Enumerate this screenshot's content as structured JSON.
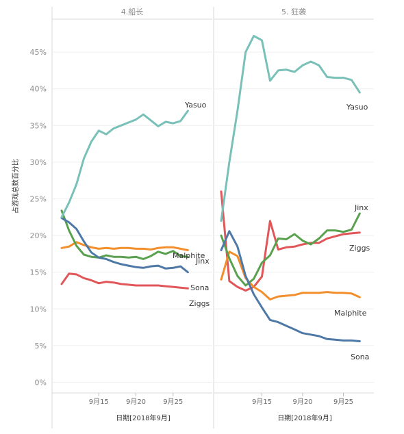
{
  "chart_data": {
    "type": "line",
    "ylabel": "占游戏总数百分比",
    "xlabel": "日期[2018年9月]",
    "y_ticks": [
      "0%",
      "5%",
      "10%",
      "15%",
      "20%",
      "25%",
      "30%",
      "35%",
      "40%",
      "45%"
    ],
    "ylim": [
      0,
      48
    ],
    "x_ticks": [
      {
        "day": 15,
        "label": "9月15"
      },
      {
        "day": 20,
        "label": "9月20"
      },
      {
        "day": 25,
        "label": "9月25"
      }
    ],
    "grid": true,
    "colors": {
      "Yasuo": "#79c1b8",
      "Jinx": "#59a14f",
      "Ziggs": "#e15759",
      "Malphite": "#f28e2b",
      "Sona": "#4e79a7"
    },
    "panels": [
      {
        "title": "4.船长",
        "x": [
          10,
          11,
          12,
          13,
          14,
          15,
          16,
          17,
          18,
          19,
          20,
          21,
          22,
          23,
          24,
          25,
          26,
          27,
          28
        ],
        "series": [
          {
            "name": "Yasuo",
            "values": [
              22.5,
              24.5,
              27.0,
              30.5,
              32.8,
              34.3,
              33.8,
              34.6,
              35.0,
              35.4,
              35.8,
              36.5,
              35.7,
              34.9,
              35.5,
              35.3,
              35.6,
              37.0,
              null
            ]
          },
          {
            "name": "Malphite",
            "values": [
              18.3,
              18.5,
              19.1,
              18.7,
              18.4,
              18.2,
              18.3,
              18.2,
              18.3,
              18.3,
              18.2,
              18.2,
              18.1,
              18.3,
              18.4,
              18.4,
              18.2,
              18.0,
              null
            ]
          },
          {
            "name": "Jinx",
            "values": [
              23.4,
              20.7,
              18.6,
              17.4,
              17.1,
              17.0,
              17.3,
              17.1,
              17.1,
              17.0,
              17.1,
              16.8,
              17.2,
              17.8,
              17.5,
              17.9,
              17.2,
              17.1,
              null
            ]
          },
          {
            "name": "Sona",
            "values": [
              22.4,
              21.8,
              20.9,
              19.2,
              17.7,
              17.0,
              16.8,
              16.4,
              16.1,
              15.9,
              15.7,
              15.6,
              15.8,
              15.9,
              15.5,
              15.6,
              15.8,
              15.0,
              null
            ]
          },
          {
            "name": "Ziggs",
            "values": [
              13.4,
              14.8,
              14.7,
              14.2,
              13.9,
              13.5,
              13.7,
              13.6,
              13.4,
              13.3,
              13.2,
              13.2,
              13.2,
              13.2,
              13.1,
              13.0,
              12.9,
              12.8,
              null
            ]
          }
        ]
      },
      {
        "title": "5. 狂袭",
        "x": [
          10,
          11,
          12,
          13,
          14,
          15,
          16,
          17,
          18,
          19,
          20,
          21,
          22,
          23,
          24,
          25,
          26,
          27,
          28
        ],
        "series": [
          {
            "name": "Yasuo",
            "values": [
              22.0,
              30.0,
              37.0,
              45.0,
              47.2,
              46.6,
              41.1,
              42.5,
              42.6,
              42.3,
              43.2,
              43.7,
              43.2,
              41.6,
              41.5,
              41.5,
              41.2,
              39.5,
              null
            ]
          },
          {
            "name": "Jinx",
            "values": [
              20.0,
              16.9,
              14.5,
              13.2,
              14.1,
              16.3,
              17.3,
              19.6,
              19.5,
              20.2,
              19.3,
              18.8,
              19.6,
              20.7,
              20.7,
              20.5,
              20.8,
              23.0,
              null
            ]
          },
          {
            "name": "Ziggs",
            "values": [
              26.0,
              13.8,
              13.0,
              12.5,
              13.0,
              14.4,
              22.0,
              18.1,
              18.4,
              18.5,
              18.8,
              19.0,
              19.0,
              19.6,
              19.9,
              20.2,
              20.3,
              20.4,
              null
            ]
          },
          {
            "name": "Malphite",
            "values": [
              14.0,
              17.8,
              17.2,
              14.2,
              13.0,
              12.3,
              11.3,
              11.7,
              11.8,
              11.9,
              12.2,
              12.2,
              12.2,
              12.3,
              12.2,
              12.2,
              12.1,
              11.6,
              null
            ]
          },
          {
            "name": "Sona",
            "values": [
              18.0,
              20.6,
              18.5,
              14.5,
              12.0,
              10.2,
              8.5,
              8.2,
              7.7,
              7.2,
              6.7,
              6.5,
              6.3,
              5.9,
              5.8,
              5.7,
              5.7,
              5.6,
              null
            ]
          }
        ]
      }
    ]
  }
}
